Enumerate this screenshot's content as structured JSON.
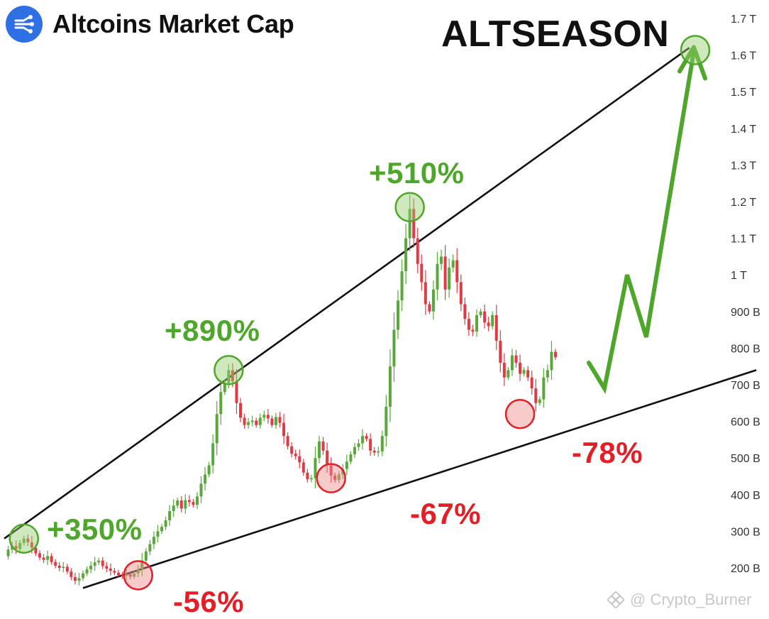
{
  "header": {
    "title": "Altcoins Market Cap",
    "logo_icon": "coin-network-icon",
    "logo_color": "#2f6fe4"
  },
  "headline": "ALTSEASON",
  "annotations": {
    "up_350": "+350%",
    "down_56": "-56%",
    "up_890": "+890%",
    "down_67": "-67%",
    "up_510": "+510%",
    "down_78": "-78%"
  },
  "watermark": {
    "text": "@ Crypto_Burner",
    "icon": "binance-square-icon"
  },
  "colors": {
    "up": "#5aa83c",
    "down": "#e03b44",
    "green_text": "#4ea72a",
    "red_text": "#e21f26",
    "arrow": "#4ea72a"
  },
  "chart_data": {
    "type": "candlestick",
    "title": "Altcoins Market Cap",
    "y_axis": {
      "position": "right",
      "scale": "linear",
      "ticks": [
        "1.7 T",
        "1.6 T",
        "1.5 T",
        "1.4 T",
        "1.3 T",
        "1.2 T",
        "1.1 T",
        "1 T",
        "900 B",
        "800 B",
        "700 B",
        "600 B",
        "500 B",
        "400 B",
        "300 B",
        "200 B"
      ],
      "tick_values": [
        1700,
        1600,
        1500,
        1400,
        1300,
        1200,
        1100,
        1000,
        900,
        800,
        700,
        600,
        500,
        400,
        300,
        200
      ],
      "unit": "billion USD",
      "range": [
        150,
        1720
      ]
    },
    "close_series_billions": [
      232,
      250,
      260,
      252,
      268,
      280,
      270,
      255,
      240,
      228,
      222,
      232,
      216,
      206,
      200,
      203,
      190,
      175,
      165,
      172,
      185,
      196,
      206,
      215,
      220,
      205,
      198,
      192,
      187,
      180,
      178,
      183,
      176,
      185,
      196,
      220,
      245,
      265,
      285,
      300,
      312,
      330,
      355,
      370,
      384,
      362,
      385,
      380,
      372,
      395,
      430,
      455,
      480,
      540,
      620,
      680,
      705,
      740,
      710,
      650,
      610,
      590,
      598,
      602,
      590,
      610,
      618,
      608,
      590,
      612,
      596,
      560,
      532,
      512,
      505,
      488,
      460,
      442,
      445,
      500,
      545,
      520,
      480,
      452,
      440,
      455,
      470,
      490,
      510,
      530,
      540,
      560,
      552,
      520,
      515,
      518,
      560,
      640,
      750,
      850,
      930,
      1010,
      1100,
      1180,
      1100,
      1030,
      980,
      920,
      900,
      960,
      1030,
      1050,
      960,
      1020,
      1040,
      980,
      920,
      880,
      850,
      845,
      890,
      900,
      870,
      860,
      890,
      820,
      760,
      720,
      740,
      780,
      760,
      730,
      740,
      720,
      690,
      650,
      660,
      720,
      740,
      790,
      775
    ],
    "trendlines": [
      {
        "name": "upper",
        "from_index": 0,
        "from_value": 280,
        "to_index": 174,
        "to_value": 1620
      },
      {
        "name": "lower",
        "from_index": 20,
        "from_value": 145,
        "to_index": 191,
        "to_value": 740
      }
    ],
    "markers": [
      {
        "label": "+350%",
        "type": "peak",
        "index": 5,
        "value": 280
      },
      {
        "label": "-56%",
        "type": "bottom",
        "index": 34,
        "value": 180
      },
      {
        "label": "+890%",
        "type": "peak",
        "index": 57,
        "value": 740
      },
      {
        "label": "-67%",
        "type": "bottom",
        "index": 83,
        "value": 445
      },
      {
        "label": "+510%",
        "type": "peak",
        "index": 103,
        "value": 1185
      },
      {
        "label": "-78%",
        "type": "bottom",
        "index": 131,
        "value": 620
      }
    ],
    "projection": {
      "label": "ALTSEASON",
      "path_values": [
        760,
        690,
        1000,
        830,
        1610
      ]
    },
    "grid": false,
    "legend": "none"
  }
}
